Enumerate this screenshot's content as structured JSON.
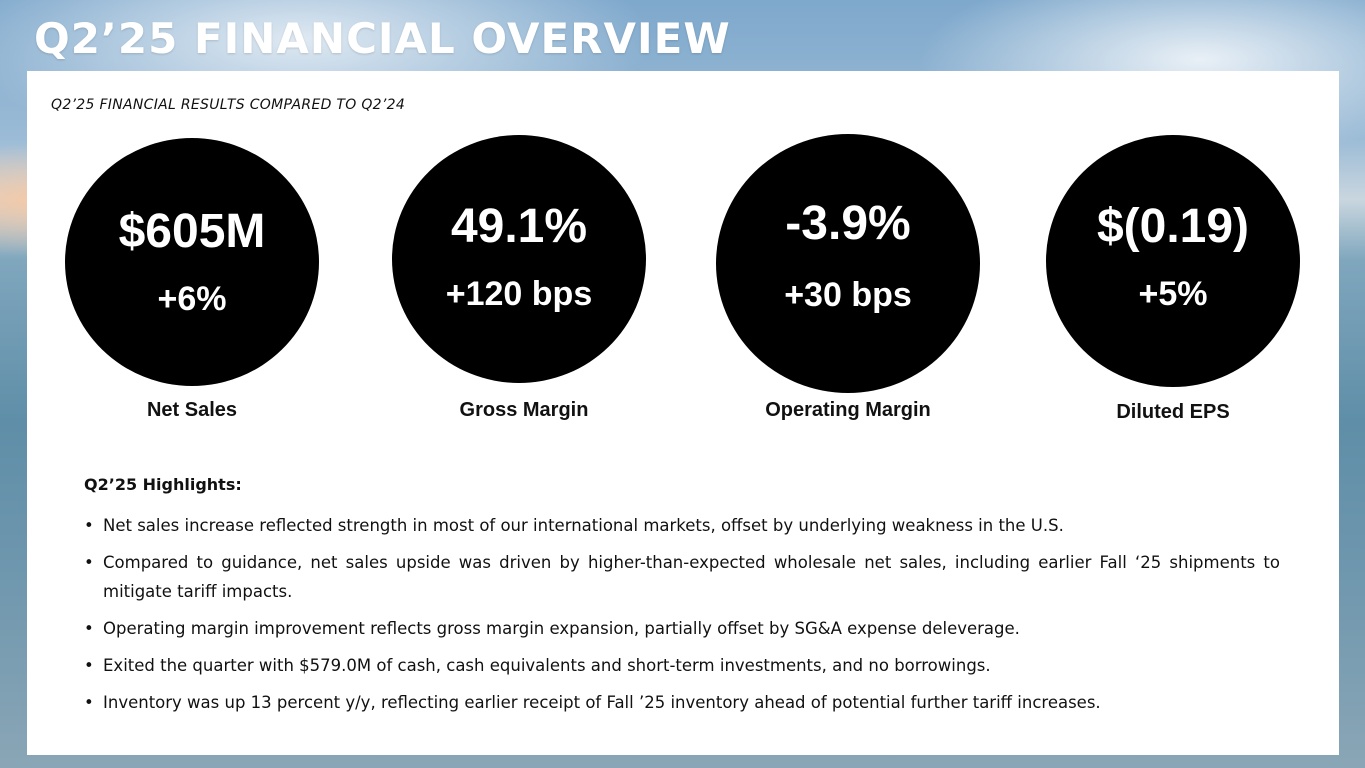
{
  "slide": {
    "title": "Q2’25 FINANCIAL OVERVIEW",
    "subtitle": "Q2’25 FINANCIAL RESULTS COMPARED TO Q2’24"
  },
  "metrics": [
    {
      "value": "$605M",
      "change": "+6%",
      "label": "Net Sales"
    },
    {
      "value": "49.1%",
      "change": "+120 bps",
      "label": "Gross Margin"
    },
    {
      "value": "-3.9%",
      "change": "+30 bps",
      "label": "Operating Margin"
    },
    {
      "value": "$(0.19)",
      "change": "+5%",
      "label": "Diluted EPS"
    }
  ],
  "highlights": {
    "heading": "Q2’25 Highlights:",
    "bullet_glyph": "•",
    "items": [
      "Net sales increase reflected strength in most of our international markets, offset by underlying weakness in the U.S.",
      "Compared to guidance, net sales upside was driven by higher-than-expected wholesale net sales, including earlier Fall ‘25 shipments to mitigate tariff impacts.",
      "Operating margin improvement reflects gross margin expansion, partially offset by SG&A expense deleverage.",
      "Exited the quarter with $579.0M of cash, cash equivalents and short-term investments, and no borrowings.",
      "Inventory was up 13 percent y/y, reflecting earlier receipt of Fall ’25 inventory ahead of potential further tariff increases."
    ]
  },
  "colors": {
    "circle": "#000000",
    "panel": "#ffffff",
    "title": "#ffffff",
    "text": "#111111"
  }
}
